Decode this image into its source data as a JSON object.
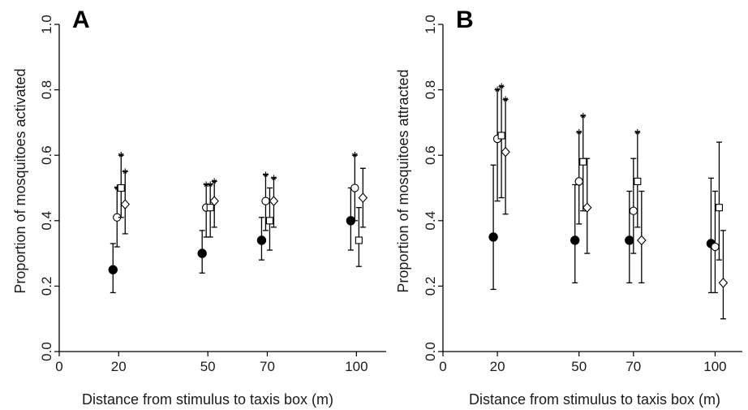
{
  "chart_data": [
    {
      "type": "scatter",
      "panel_label": "A",
      "xlabel": "Distance from stimulus to taxis box (m)",
      "ylabel": "Proportion of mosquitoes activated",
      "x_ticks": [
        0,
        20,
        50,
        70,
        100
      ],
      "y_ticks": [
        "0.0",
        "0.2",
        "0.4",
        "0.6",
        "0.8",
        "1.0"
      ],
      "xlim": [
        0,
        110
      ],
      "ylim": [
        0,
        1.0
      ],
      "grid": false,
      "series": [
        {
          "marker": "filled-circle",
          "x": [
            20,
            50,
            70,
            100
          ],
          "y": [
            0.25,
            0.3,
            0.34,
            0.4
          ],
          "lower": [
            0.18,
            0.24,
            0.28,
            0.31
          ],
          "upper": [
            0.33,
            0.37,
            0.41,
            0.5
          ],
          "significant": [
            false,
            false,
            false,
            false
          ]
        },
        {
          "marker": "open-circle",
          "x": [
            20,
            50,
            70,
            100
          ],
          "y": [
            0.41,
            0.44,
            0.46,
            0.5
          ],
          "lower": [
            0.32,
            0.35,
            0.37,
            0.4
          ],
          "upper": [
            0.5,
            0.51,
            0.54,
            0.6
          ],
          "significant": [
            true,
            true,
            true,
            true
          ]
        },
        {
          "marker": "open-square",
          "x": [
            20,
            50,
            70,
            100
          ],
          "y": [
            0.5,
            0.44,
            0.4,
            0.34
          ],
          "lower": [
            0.41,
            0.35,
            0.31,
            0.26
          ],
          "upper": [
            0.6,
            0.51,
            0.5,
            0.44
          ],
          "significant": [
            true,
            true,
            false,
            false
          ]
        },
        {
          "marker": "open-diamond",
          "x": [
            20,
            50,
            70,
            100
          ],
          "y": [
            0.45,
            0.46,
            0.46,
            0.47
          ],
          "lower": [
            0.36,
            0.38,
            0.38,
            0.38
          ],
          "upper": [
            0.55,
            0.52,
            0.53,
            0.56
          ],
          "significant": [
            true,
            true,
            true,
            false
          ]
        }
      ]
    },
    {
      "type": "scatter",
      "panel_label": "B",
      "xlabel": "Distance from stimulus to taxis box (m)",
      "ylabel": "Proportion of mosquitoes attracted",
      "x_ticks": [
        0,
        20,
        50,
        70,
        100
      ],
      "y_ticks": [
        "0.0",
        "0.2",
        "0.4",
        "0.6",
        "0.8",
        "1.0"
      ],
      "xlim": [
        0,
        110
      ],
      "ylim": [
        0,
        1.0
      ],
      "grid": false,
      "series": [
        {
          "marker": "filled-circle",
          "x": [
            20,
            50,
            70,
            100
          ],
          "y": [
            0.35,
            0.34,
            0.34,
            0.33
          ],
          "lower": [
            0.19,
            0.21,
            0.21,
            0.18
          ],
          "upper": [
            0.57,
            0.51,
            0.49,
            0.53
          ],
          "significant": [
            false,
            false,
            false,
            false
          ]
        },
        {
          "marker": "open-circle",
          "x": [
            20,
            50,
            70,
            100
          ],
          "y": [
            0.65,
            0.52,
            0.43,
            0.32
          ],
          "lower": [
            0.46,
            0.39,
            0.3,
            0.18
          ],
          "upper": [
            0.8,
            0.67,
            0.59,
            0.49
          ],
          "significant": [
            true,
            true,
            false,
            false
          ]
        },
        {
          "marker": "open-square",
          "x": [
            20,
            50,
            70,
            100
          ],
          "y": [
            0.66,
            0.58,
            0.52,
            0.44
          ],
          "lower": [
            0.47,
            0.43,
            0.38,
            0.28
          ],
          "upper": [
            0.81,
            0.72,
            0.67,
            0.64
          ],
          "significant": [
            true,
            true,
            true,
            false
          ]
        },
        {
          "marker": "open-diamond",
          "x": [
            20,
            50,
            70,
            100
          ],
          "y": [
            0.61,
            0.44,
            0.34,
            0.21
          ],
          "lower": [
            0.42,
            0.3,
            0.21,
            0.1
          ],
          "upper": [
            0.77,
            0.59,
            0.49,
            0.37
          ],
          "significant": [
            true,
            false,
            false,
            false
          ]
        }
      ]
    }
  ]
}
